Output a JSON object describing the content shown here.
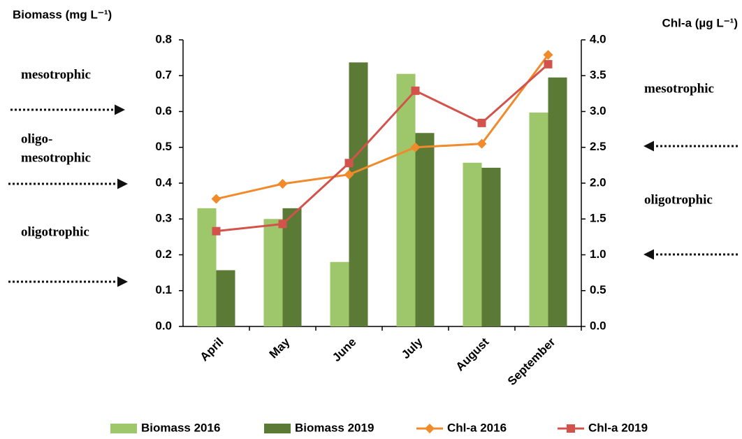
{
  "chart_data": {
    "type": "bar",
    "y_label": "Biomass (mg L⁻¹)",
    "y2_label": "Chl-a (µg L⁻¹)",
    "categories": [
      "April",
      "May",
      "June",
      "July",
      "August",
      "September"
    ],
    "series": [
      {
        "name": "Biomass 2016",
        "type": "bar",
        "color": "#9dc76a",
        "values": [
          0.33,
          0.3,
          0.18,
          0.705,
          0.457,
          0.597
        ]
      },
      {
        "name": "Biomass 2019",
        "type": "bar",
        "color": "#5b7a35",
        "values": [
          0.157,
          0.33,
          0.737,
          0.54,
          0.443,
          0.695
        ]
      },
      {
        "name": "Chl-a 2016",
        "type": "line",
        "axis": "y2",
        "color": "#f08a2a",
        "values": [
          1.78,
          1.99,
          2.12,
          2.5,
          2.55,
          3.79
        ]
      },
      {
        "name": "Chl-a 2019",
        "type": "line",
        "axis": "y2",
        "color": "#d4524c",
        "values": [
          1.33,
          1.43,
          2.28,
          3.29,
          2.84,
          3.66
        ]
      }
    ],
    "ylim": [
      0,
      0.8
    ],
    "yticks": [
      {
        "value": 0,
        "label": "0.0"
      },
      0.1,
      0.2,
      0.3,
      0.4,
      0.5,
      0.6,
      0.7,
      0.8
    ],
    "y2lim": [
      0,
      4
    ],
    "y2ticks": [
      {
        "value": 0,
        "label": "0.0"
      },
      0.5,
      {
        "value": 1,
        "label": "1.0"
      },
      1.5,
      {
        "value": 2,
        "label": "2.0"
      },
      2.5,
      {
        "value": 3,
        "label": "3.0"
      },
      3.5,
      {
        "value": 4,
        "label": "4.0"
      }
    ],
    "left_annotations": [
      [
        "mesotrophic"
      ],
      [
        "oligo-",
        "mesotrophic"
      ],
      [
        "oligotrophic"
      ]
    ],
    "right_annotations": [
      "mesotrophic",
      "oligotrophic"
    ]
  }
}
